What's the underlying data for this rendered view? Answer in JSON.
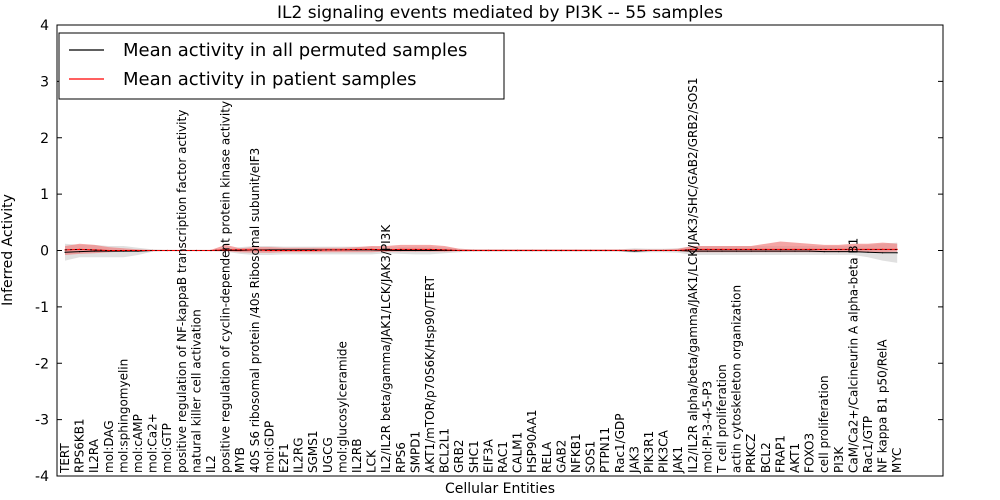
{
  "chart_data": {
    "type": "line",
    "title": "IL2 signaling events mediated by PI3K -- 55 samples",
    "xlabel": "Cellular Entities",
    "ylabel": "Inferred Activity",
    "ylim": [
      -4,
      4
    ],
    "yticks": [
      -4,
      -3,
      -2,
      -1,
      0,
      1,
      2,
      3,
      4
    ],
    "grid": false,
    "legend_position": "top-left",
    "categories": [
      "TERT",
      "RPS6KB1",
      "IL2RA",
      "mol:DAG",
      "mol:sphingomyelin",
      "mol:cAMP",
      "mol:Ca2+",
      "mol:GTP",
      "positive regulation of NF-kappaB transcription factor activity",
      "natural killer cell activation",
      "IL2",
      "positive regulation of cyclin-dependent protein kinase activity",
      "MYB",
      "40S S6 ribosomal protein /40s Ribosomal subunit/eIF3",
      "mol:GDP",
      "E2F1",
      "IL2RG",
      "SGMS1",
      "UGCG",
      "mol:glucosylceramide",
      "IL2RB",
      "LCK",
      "IL2/IL2R beta/gamma/JAK1/LCK/JAK3/PI3K",
      "RPS6",
      "SMPD1",
      "AKT1/mTOR/p70S6K/Hsp90/TERT",
      "BCL2L1",
      "GRB2",
      "SHC1",
      "EIF3A",
      "RAC1",
      "CALM1",
      "HSP90AA1",
      "RELA",
      "GAB2",
      "NFKB1",
      "SOS1",
      "PTPN11",
      "Rac1/GDP",
      "JAK3",
      "PIK3R1",
      "PIK3CA",
      "JAK1",
      "IL2/IL2R alpha/beta/gamma/JAK1/LCK/JAK3/SHC/GAB2/GRB2/SOS1",
      "mol:PI-3-4-5-P3",
      "T cell proliferation",
      "actin cytoskeleton organization",
      "PRKCZ",
      "BCL2",
      "FRAP1",
      "AKT1",
      "FOXO3",
      "cell proliferation",
      "PI3K",
      "CaM/Ca2+/Calcineurin A alpha-beta B1",
      "Rac1/GTP",
      "NF kappa B1 p50/RelA",
      "MYC"
    ],
    "series": [
      {
        "name": "Mean activity in all permuted samples",
        "color": "#000000",
        "values": [
          -0.03,
          -0.02,
          -0.01,
          -0.01,
          -0.01,
          -0.01,
          0,
          0,
          0,
          0,
          0,
          0,
          0,
          0.01,
          0.01,
          0.01,
          0.01,
          0.01,
          0.01,
          0.01,
          0.01,
          0.01,
          0,
          0,
          0,
          0,
          0,
          0,
          0,
          0,
          0,
          0,
          0,
          0,
          0,
          0,
          0,
          0,
          0,
          -0.01,
          0,
          0,
          0,
          -0.01,
          -0.01,
          -0.01,
          -0.01,
          -0.01,
          -0.01,
          -0.01,
          -0.01,
          -0.01,
          -0.02,
          -0.02,
          -0.02,
          -0.03,
          -0.04,
          -0.04
        ],
        "band_lower": [
          -0.18,
          -0.12,
          -0.12,
          -0.12,
          -0.12,
          -0.08,
          -0.02,
          -0.01,
          -0.01,
          -0.01,
          -0.01,
          -0.02,
          -0.06,
          -0.08,
          -0.08,
          -0.07,
          -0.07,
          -0.07,
          -0.07,
          -0.07,
          -0.07,
          -0.07,
          -0.05,
          -0.06,
          -0.07,
          -0.07,
          -0.05,
          -0.03,
          -0.02,
          -0.02,
          -0.02,
          -0.02,
          -0.02,
          -0.02,
          -0.02,
          -0.02,
          -0.02,
          -0.02,
          -0.02,
          -0.04,
          -0.03,
          -0.03,
          -0.04,
          -0.08,
          -0.08,
          -0.08,
          -0.08,
          -0.08,
          -0.08,
          -0.08,
          -0.08,
          -0.08,
          -0.08,
          -0.08,
          -0.08,
          -0.12,
          -0.18,
          -0.22
        ],
        "band_upper": [
          0.12,
          0.1,
          0.1,
          0.08,
          0.08,
          0.05,
          0.02,
          0.01,
          0.01,
          0.01,
          0.01,
          0.02,
          0.06,
          0.08,
          0.08,
          0.07,
          0.07,
          0.07,
          0.07,
          0.07,
          0.07,
          0.07,
          0.05,
          0.06,
          0.07,
          0.07,
          0.05,
          0.03,
          0.02,
          0.02,
          0.02,
          0.02,
          0.02,
          0.02,
          0.02,
          0.02,
          0.02,
          0.02,
          0.02,
          0.04,
          0.03,
          0.03,
          0.04,
          0.08,
          0.08,
          0.08,
          0.08,
          0.08,
          0.08,
          0.08,
          0.08,
          0.08,
          0.08,
          0.08,
          0.08,
          0.1,
          0.12,
          0.14
        ]
      },
      {
        "name": "Mean activity in patient samples",
        "color": "#ff0000",
        "values": [
          0.01,
          0.02,
          0.01,
          0,
          0,
          0,
          0,
          0,
          0,
          0,
          0,
          0.01,
          0.01,
          0.01,
          0,
          0,
          0,
          0,
          0.01,
          0.01,
          0.02,
          0.02,
          0.01,
          0.02,
          0.02,
          0.02,
          0.01,
          0,
          0,
          0,
          0,
          0,
          0,
          0,
          0,
          0,
          0,
          0,
          0,
          0,
          0,
          0,
          0,
          0.02,
          0.02,
          0.02,
          0.02,
          0.02,
          0.02,
          0.02,
          0.02,
          0.02,
          0.02,
          0.02,
          0.02,
          0.02,
          0.02,
          0.02
        ],
        "band_lower": [
          -0.08,
          -0.06,
          -0.05,
          -0.03,
          -0.02,
          -0.01,
          -0.01,
          -0.01,
          -0.01,
          -0.01,
          -0.01,
          -0.01,
          -0.03,
          -0.04,
          -0.04,
          -0.03,
          -0.03,
          -0.03,
          -0.03,
          -0.03,
          -0.03,
          -0.03,
          -0.02,
          -0.02,
          -0.02,
          -0.02,
          -0.02,
          -0.01,
          -0.01,
          -0.01,
          -0.01,
          -0.01,
          -0.01,
          -0.01,
          -0.01,
          -0.01,
          -0.01,
          -0.01,
          -0.01,
          -0.01,
          -0.01,
          -0.01,
          -0.01,
          -0.03,
          -0.03,
          -0.03,
          -0.03,
          -0.03,
          -0.03,
          -0.03,
          -0.03,
          -0.03,
          -0.03,
          -0.03,
          -0.03,
          -0.03,
          -0.03,
          -0.02
        ],
        "band_upper": [
          0.08,
          0.12,
          0.1,
          0.06,
          0.04,
          0.02,
          0.01,
          0.01,
          0.01,
          0.01,
          0.01,
          0.1,
          0.04,
          0.06,
          0.06,
          0.05,
          0.05,
          0.05,
          0.05,
          0.05,
          0.06,
          0.08,
          0.08,
          0.1,
          0.1,
          0.1,
          0.08,
          0.03,
          0.02,
          0.02,
          0.02,
          0.02,
          0.02,
          0.02,
          0.02,
          0.02,
          0.02,
          0.02,
          0.02,
          0.02,
          0.02,
          0.02,
          0.03,
          0.08,
          0.08,
          0.08,
          0.08,
          0.08,
          0.12,
          0.16,
          0.14,
          0.12,
          0.1,
          0.1,
          0.12,
          0.12,
          0.14,
          0.12
        ]
      }
    ],
    "band_colors": {
      "permuted": "#cccccc",
      "patient": "#f08080"
    }
  }
}
